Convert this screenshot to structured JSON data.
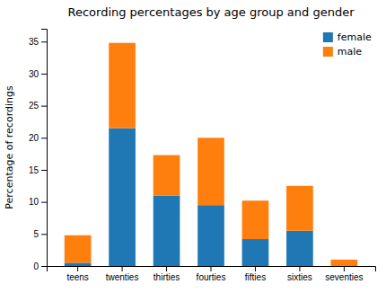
{
  "chart_data": {
    "type": "bar",
    "title": "Recording percentages by age group and gender",
    "ylabel": "Percentage of recordings",
    "categories": [
      "teens",
      "twenties",
      "thirties",
      "fourties",
      "fifties",
      "sixties",
      "seventies"
    ],
    "series": [
      {
        "name": "female",
        "color": "#1f77b4",
        "values": [
          0.5,
          21.5,
          11.0,
          9.5,
          4.2,
          5.5,
          0.0
        ]
      },
      {
        "name": "male",
        "color": "#ff7f0e",
        "values": [
          4.3,
          13.3,
          6.3,
          10.5,
          6.0,
          7.0,
          1.0
        ]
      }
    ],
    "stacked": true,
    "ylim": [
      0,
      37
    ],
    "yticks": [
      0,
      5,
      10,
      15,
      20,
      25,
      30,
      35
    ],
    "legend": "upper right",
    "grid": false
  }
}
